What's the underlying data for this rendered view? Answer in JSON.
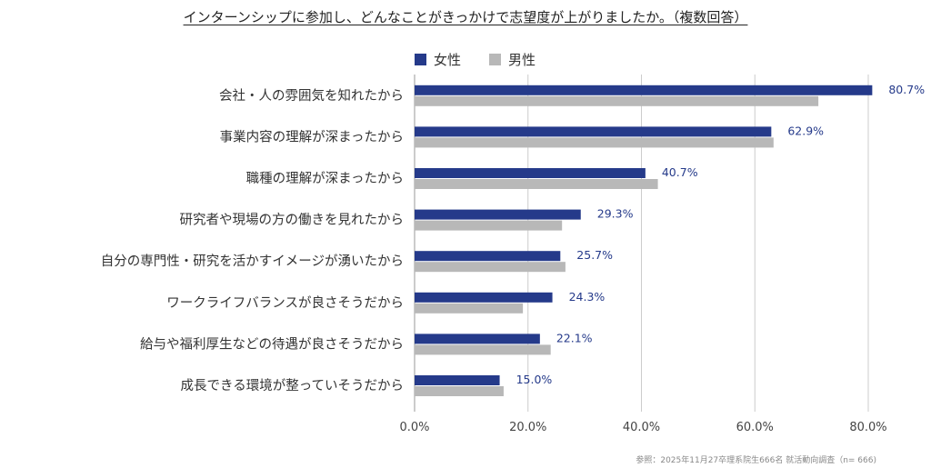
{
  "chart_data": {
    "type": "bar",
    "orientation": "horizontal",
    "title": "インターンシップに参加し、どんなことがきっかけで志望度が上がりましたか。（複数回答）",
    "categories": [
      "会社・人の雰囲気を知れたから",
      "事業内容の理解が深まったから",
      "職種の理解が深まったから",
      "研究者や現場の方の働きを見れたから",
      "自分の専門性・研究を活かすイメージが湧いたから",
      "ワークライフバランスが良さそうだから",
      "給与や福利厚生などの待遇が良さそうだから",
      "成長できる環境が整っていそうだから"
    ],
    "series": [
      {
        "name": "女性",
        "color": "#253a8a",
        "values": [
          80.7,
          62.9,
          40.7,
          29.3,
          25.7,
          24.3,
          22.1,
          15.0
        ],
        "labels": [
          "80.7%",
          "62.9%",
          "40.7%",
          "29.3%",
          "25.7%",
          "24.3%",
          "22.1%",
          "15.0%"
        ]
      },
      {
        "name": "男性",
        "color": "#b8b8b8",
        "values": [
          71.2,
          63.3,
          42.9,
          26.0,
          26.6,
          19.1,
          24.0,
          15.7
        ]
      }
    ],
    "xlim": [
      0,
      80
    ],
    "xticks": [
      "0.0%",
      "20.0%",
      "40.0%",
      "60.0%",
      "80.0%"
    ],
    "xtick_values": [
      0,
      20,
      40,
      60,
      80
    ],
    "legend": "top",
    "grid": true
  },
  "footnote": "参照：2025年11月27卒理系院生666名 就活動向調査（n= 666)"
}
